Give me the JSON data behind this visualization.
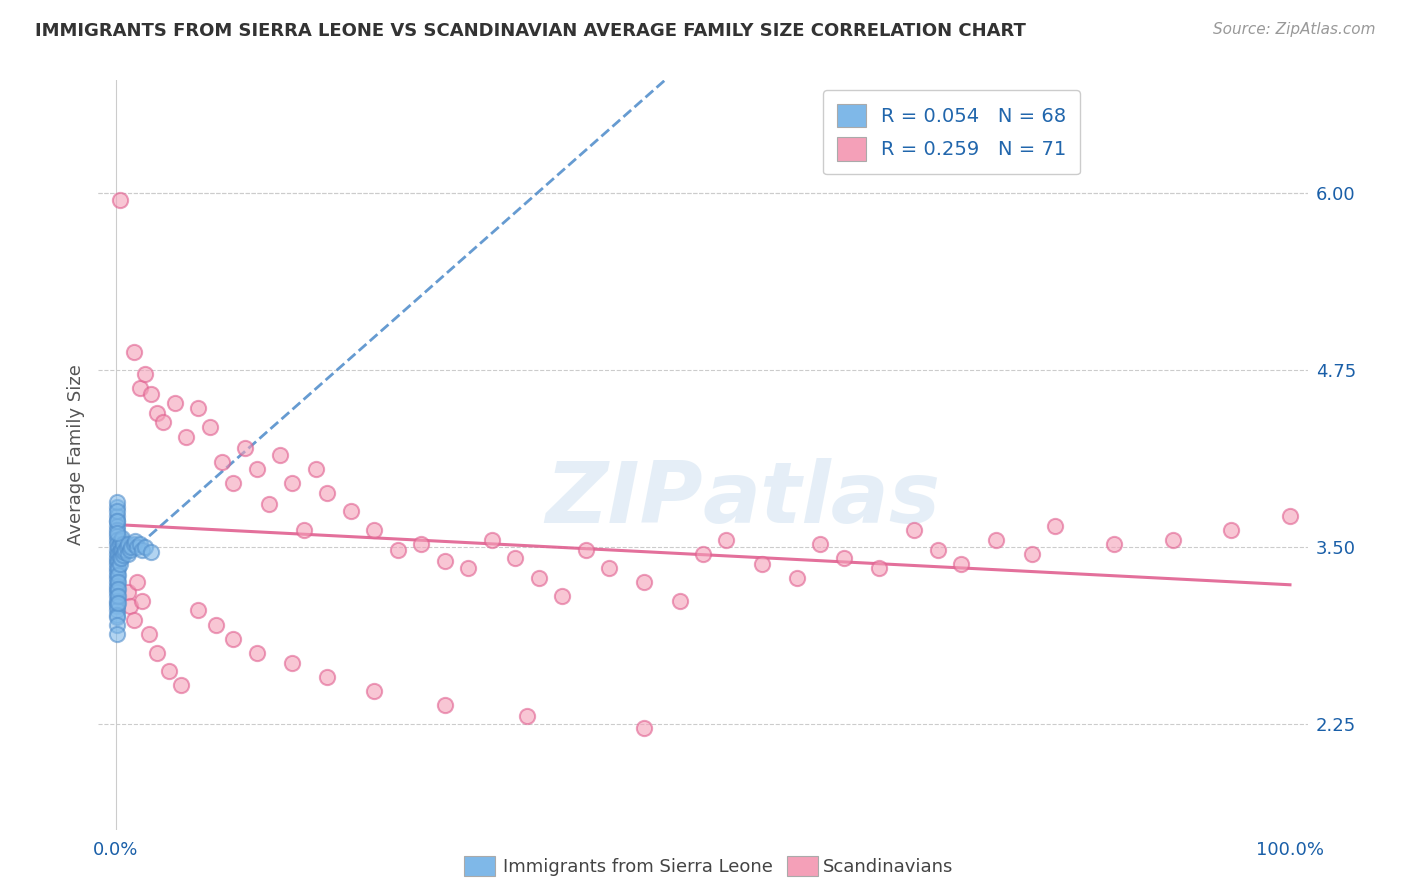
{
  "title": "IMMIGRANTS FROM SIERRA LEONE VS SCANDINAVIAN AVERAGE FAMILY SIZE CORRELATION CHART",
  "source": "Source: ZipAtlas.com",
  "ylabel": "Average Family Size",
  "right_yticks": [
    2.25,
    3.5,
    4.75,
    6.0
  ],
  "watermark": "ZIPatlas",
  "legend_blue_R": "R = 0.054",
  "legend_blue_N": "N = 68",
  "legend_pink_R": "R = 0.259",
  "legend_pink_N": "N = 71",
  "blue_color": "#7fb8e8",
  "pink_color": "#f4a0b8",
  "blue_edge_color": "#5590cc",
  "pink_edge_color": "#e06090",
  "blue_line_color": "#5590cc",
  "pink_line_color": "#e06090",
  "legend_text_color": "#2166ac",
  "ylim_min": 1.5,
  "ylim_max": 6.8,
  "blue_scatter_x": [
    0.001,
    0.001,
    0.001,
    0.001,
    0.001,
    0.001,
    0.001,
    0.001,
    0.001,
    0.001,
    0.001,
    0.001,
    0.001,
    0.001,
    0.001,
    0.001,
    0.001,
    0.001,
    0.001,
    0.001,
    0.001,
    0.001,
    0.001,
    0.001,
    0.001,
    0.001,
    0.001,
    0.001,
    0.001,
    0.001,
    0.002,
    0.002,
    0.002,
    0.002,
    0.002,
    0.002,
    0.002,
    0.002,
    0.002,
    0.003,
    0.003,
    0.003,
    0.003,
    0.004,
    0.004,
    0.004,
    0.005,
    0.005,
    0.006,
    0.006,
    0.007,
    0.008,
    0.009,
    0.01,
    0.01,
    0.012,
    0.013,
    0.015,
    0.016,
    0.018,
    0.02,
    0.022,
    0.025,
    0.03,
    0.001,
    0.001,
    0.001,
    0.001
  ],
  "blue_scatter_y": [
    3.78,
    3.72,
    3.68,
    3.65,
    3.62,
    3.58,
    3.55,
    3.52,
    3.48,
    3.45,
    3.42,
    3.4,
    3.38,
    3.35,
    3.33,
    3.3,
    3.28,
    3.25,
    3.22,
    3.2,
    3.18,
    3.15,
    3.12,
    3.1,
    3.08,
    3.05,
    3.02,
    3.0,
    2.95,
    2.88,
    3.5,
    3.45,
    3.4,
    3.35,
    3.3,
    3.25,
    3.2,
    3.15,
    3.1,
    3.52,
    3.46,
    3.42,
    3.38,
    3.55,
    3.48,
    3.42,
    3.56,
    3.48,
    3.52,
    3.44,
    3.46,
    3.48,
    3.5,
    3.52,
    3.45,
    3.48,
    3.5,
    3.52,
    3.54,
    3.5,
    3.52,
    3.48,
    3.5,
    3.46,
    3.82,
    3.75,
    3.68,
    3.6
  ],
  "pink_scatter_x": [
    0.003,
    0.015,
    0.02,
    0.025,
    0.03,
    0.035,
    0.04,
    0.05,
    0.06,
    0.07,
    0.08,
    0.09,
    0.1,
    0.11,
    0.12,
    0.13,
    0.14,
    0.15,
    0.16,
    0.17,
    0.18,
    0.2,
    0.22,
    0.24,
    0.26,
    0.28,
    0.3,
    0.32,
    0.34,
    0.36,
    0.38,
    0.4,
    0.42,
    0.45,
    0.48,
    0.5,
    0.52,
    0.55,
    0.58,
    0.6,
    0.62,
    0.65,
    0.68,
    0.7,
    0.72,
    0.75,
    0.78,
    0.8,
    0.85,
    0.9,
    0.95,
    1.0,
    0.01,
    0.012,
    0.015,
    0.018,
    0.022,
    0.028,
    0.035,
    0.045,
    0.055,
    0.07,
    0.085,
    0.1,
    0.12,
    0.15,
    0.18,
    0.22,
    0.28,
    0.35,
    0.45
  ],
  "pink_scatter_y": [
    5.95,
    4.88,
    4.62,
    4.72,
    4.58,
    4.45,
    4.38,
    4.52,
    4.28,
    4.48,
    4.35,
    4.1,
    3.95,
    4.2,
    4.05,
    3.8,
    4.15,
    3.95,
    3.62,
    4.05,
    3.88,
    3.75,
    3.62,
    3.48,
    3.52,
    3.4,
    3.35,
    3.55,
    3.42,
    3.28,
    3.15,
    3.48,
    3.35,
    3.25,
    3.12,
    3.45,
    3.55,
    3.38,
    3.28,
    3.52,
    3.42,
    3.35,
    3.62,
    3.48,
    3.38,
    3.55,
    3.45,
    3.65,
    3.52,
    3.55,
    3.62,
    3.72,
    3.18,
    3.08,
    2.98,
    3.25,
    3.12,
    2.88,
    2.75,
    2.62,
    2.52,
    3.05,
    2.95,
    2.85,
    2.75,
    2.68,
    2.58,
    2.48,
    2.38,
    2.3,
    2.22
  ]
}
